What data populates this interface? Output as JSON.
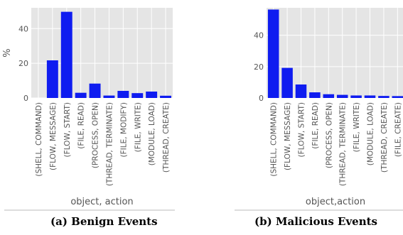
{
  "chart_data": [
    {
      "type": "bar",
      "caption": "(a) Benign Events",
      "xlabel": "object, action",
      "ylabel": "%",
      "ylim": [
        0,
        52
      ],
      "yticks": [
        0,
        20,
        40
      ],
      "grid": true,
      "bar_color": "#0f1cf0",
      "categories": [
        "(SHELL, COMMAND)",
        "(FLOW, MESSAGE)",
        "(FLOW, START)",
        "(FILE, READ)",
        "(PROCESS, OPEN)",
        "(THREAD, TERMINATE)",
        "(FILE, MODIFY)",
        "(FILE, WRITE)",
        "(MODULE, LOAD)",
        "(THREAD, CREATE)"
      ],
      "values": [
        0,
        21.7,
        49.7,
        3.0,
        8.3,
        1.4,
        4.1,
        2.8,
        3.7,
        1.3
      ]
    },
    {
      "type": "bar",
      "caption": "(b) Malicious Events",
      "xlabel": "object,action",
      "ylabel": "",
      "ylim": [
        0,
        57.5
      ],
      "yticks": [
        0,
        20,
        40
      ],
      "grid": true,
      "bar_color": "#0f1cf0",
      "categories": [
        "(SHELL, COMMAND)",
        "(FLOW, MESSAGE)",
        "(FLOW, START)",
        "(FILE, READ)",
        "(PROCESS, OPEN)",
        "(THREAD, TERMINATE)",
        "(FILE, WRITE)",
        "(MODULE, LOAD)",
        "(THREAD, CREATE)",
        "(FILE, CREATE)"
      ],
      "values": [
        56.4,
        19.2,
        8.6,
        3.6,
        2.4,
        2.0,
        1.6,
        1.6,
        1.3,
        1.2
      ]
    }
  ],
  "colors": {
    "plot_background": "#e5e5e5",
    "grid": "#ffffff",
    "text": "#555555",
    "divider": "#bbbbbb"
  }
}
